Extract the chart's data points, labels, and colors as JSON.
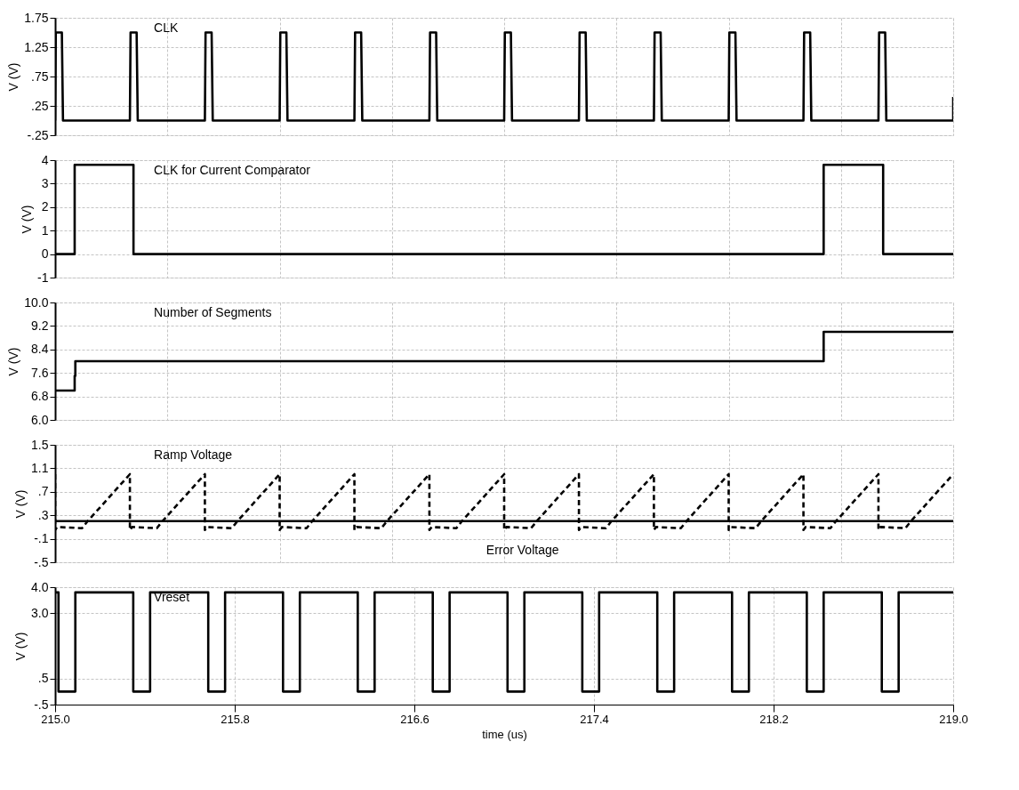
{
  "chart_data": [
    {
      "type": "line",
      "ylabel": "V (V)",
      "xlim": [
        215.0,
        219.0
      ],
      "ylim": [
        -0.25,
        1.75
      ],
      "grid": true,
      "tick_labels": "y",
      "yticks": [
        {
          "value": -0.25,
          "label": "-.25"
        },
        {
          "value": 0.25,
          "label": ".25"
        },
        {
          "value": 0.75,
          "label": ".75"
        },
        {
          "value": 1.25,
          "label": "1.25"
        },
        {
          "value": 1.75,
          "label": "1.75"
        }
      ],
      "series": [
        {
          "name": "CLK",
          "color": "#000000",
          "line_style": "solid",
          "x": [
            215.0,
            215.003,
            215.03,
            215.035,
            215.333,
            215.336,
            215.363,
            215.368,
            215.667,
            215.67,
            215.697,
            215.702,
            216.0,
            216.003,
            216.03,
            216.035,
            216.333,
            216.336,
            216.363,
            216.368,
            216.667,
            216.67,
            216.697,
            216.702,
            217.0,
            217.003,
            217.03,
            217.035,
            217.333,
            217.336,
            217.363,
            217.368,
            217.667,
            217.67,
            217.697,
            217.702,
            218.0,
            218.003,
            218.03,
            218.035,
            218.333,
            218.336,
            218.363,
            218.368,
            218.667,
            218.67,
            218.697,
            218.702,
            219.0,
            219.0
          ],
          "values": [
            0,
            1.5,
            1.5,
            0,
            0,
            1.5,
            1.5,
            0,
            0,
            1.5,
            1.5,
            0,
            0,
            1.5,
            1.5,
            0,
            0,
            1.5,
            1.5,
            0,
            0,
            1.5,
            1.5,
            0,
            0,
            1.5,
            1.5,
            0,
            0,
            1.5,
            1.5,
            0,
            0,
            1.5,
            1.5,
            0,
            0,
            1.5,
            1.5,
            0,
            0,
            1.5,
            1.5,
            0,
            0,
            1.5,
            1.5,
            0,
            0,
            0.4
          ]
        }
      ]
    },
    {
      "type": "line",
      "ylabel": "V (V)",
      "xlim": [
        215.0,
        219.0
      ],
      "ylim": [
        -1,
        4
      ],
      "grid": true,
      "tick_labels": "y",
      "yticks": [
        -1,
        0,
        1,
        2,
        3,
        4
      ],
      "series": [
        {
          "name": "CLK for Current Comparator",
          "color": "#000000",
          "line_style": "solid",
          "x": [
            215.0,
            215.087,
            215.087,
            215.349,
            215.349,
            218.423,
            218.423,
            218.688,
            218.688,
            219.0
          ],
          "values": [
            0,
            0,
            3.8,
            3.8,
            0,
            0,
            3.8,
            3.8,
            0,
            0
          ]
        }
      ]
    },
    {
      "type": "line",
      "ylabel": "V (V)",
      "xlim": [
        215.0,
        219.0
      ],
      "ylim": [
        6.0,
        10.0
      ],
      "grid": true,
      "tick_labels": "y",
      "yticks": [
        {
          "value": 6.0,
          "label": "6.0"
        },
        {
          "value": 6.8,
          "label": "6.8"
        },
        {
          "value": 7.6,
          "label": "7.6"
        },
        {
          "value": 8.4,
          "label": "8.4"
        },
        {
          "value": 9.2,
          "label": "9.2"
        },
        {
          "value": 10.0,
          "label": "10.0"
        }
      ],
      "series": [
        {
          "name": "Number of Segments",
          "color": "#000000",
          "line_style": "solid",
          "x": [
            215.0,
            215.087,
            215.087,
            215.09,
            215.09,
            218.423,
            218.423,
            219.0
          ],
          "values": [
            7,
            7,
            7.5,
            7.5,
            8,
            8,
            9,
            9
          ]
        }
      ]
    },
    {
      "type": "line",
      "ylabel": "V (V)",
      "xlim": [
        215.0,
        219.0
      ],
      "ylim": [
        -0.5,
        1.5
      ],
      "grid": true,
      "tick_labels": "y",
      "yticks": [
        {
          "value": -0.5,
          "label": "-.5"
        },
        {
          "value": -0.1,
          "label": "-.1"
        },
        {
          "value": 0.3,
          "label": ".3"
        },
        {
          "value": 0.7,
          "label": ".7"
        },
        {
          "value": 1.1,
          "label": "1.1"
        },
        {
          "value": 1.5,
          "label": "1.5"
        }
      ],
      "series": [
        {
          "name": "Ramp Voltage",
          "color": "#000000",
          "line_style": "dashed",
          "x": [
            215.0,
            215.0,
            215.01,
            215.12,
            215.145,
            215.333,
            215.333,
            215.343,
            215.453,
            215.478,
            215.667,
            215.667,
            215.677,
            215.787,
            215.812,
            216.0,
            216.0,
            216.01,
            216.12,
            216.145,
            216.333,
            216.333,
            216.343,
            216.453,
            216.478,
            216.667,
            216.667,
            216.677,
            216.787,
            216.812,
            217.0,
            217.0,
            217.01,
            217.12,
            217.145,
            217.333,
            217.333,
            217.343,
            217.453,
            217.478,
            217.667,
            217.667,
            217.677,
            217.787,
            217.812,
            218.0,
            218.0,
            218.01,
            218.12,
            218.145,
            218.333,
            218.333,
            218.343,
            218.453,
            218.478,
            218.667,
            218.667,
            218.677,
            218.787,
            218.812,
            219.0
          ],
          "values": [
            1.0,
            0.05,
            0.1,
            0.08,
            0.2,
            1.0,
            0.05,
            0.1,
            0.08,
            0.2,
            1.0,
            0.05,
            0.1,
            0.08,
            0.2,
            1.0,
            0.05,
            0.1,
            0.08,
            0.2,
            1.0,
            0.05,
            0.1,
            0.08,
            0.2,
            1.0,
            0.05,
            0.1,
            0.08,
            0.2,
            1.0,
            0.05,
            0.1,
            0.08,
            0.2,
            1.0,
            0.05,
            0.1,
            0.08,
            0.2,
            1.0,
            0.05,
            0.1,
            0.08,
            0.2,
            1.0,
            0.05,
            0.1,
            0.08,
            0.2,
            1.0,
            0.05,
            0.1,
            0.08,
            0.2,
            1.0,
            0.05,
            0.1,
            0.08,
            0.2,
            1.0
          ]
        },
        {
          "name": "Error Voltage",
          "color": "#000000",
          "line_style": "solid",
          "x": [
            215.0,
            219.0
          ],
          "values": [
            0.2,
            0.2
          ]
        }
      ]
    },
    {
      "type": "line",
      "ylabel": "V (V)",
      "xlabel": "time (us)",
      "xlim": [
        215.0,
        219.0
      ],
      "ylim": [
        -0.5,
        4.0
      ],
      "grid": true,
      "xticks": [
        {
          "value": 215.0,
          "label": "215.0"
        },
        {
          "value": 215.8,
          "label": "215.8"
        },
        {
          "value": 216.6,
          "label": "216.6"
        },
        {
          "value": 217.4,
          "label": "217.4"
        },
        {
          "value": 218.2,
          "label": "218.2"
        },
        {
          "value": 219.0,
          "label": "219.0"
        }
      ],
      "yticks": [
        {
          "value": -0.5,
          "label": "-.5"
        },
        {
          "value": 0.5,
          "label": ".5"
        },
        {
          "value": 3.0,
          "label": "3.0"
        },
        {
          "value": 4.0,
          "label": "4.0"
        }
      ],
      "series": [
        {
          "name": "Vreset",
          "color": "#000000",
          "line_style": "solid",
          "x": [
            215.0,
            215.015,
            215.015,
            215.09,
            215.09,
            215.348,
            215.348,
            215.423,
            215.423,
            215.682,
            215.682,
            215.757,
            215.757,
            216.015,
            216.015,
            216.09,
            216.09,
            216.348,
            216.348,
            216.423,
            216.423,
            216.682,
            216.682,
            216.757,
            216.757,
            217.015,
            217.015,
            217.09,
            217.09,
            217.348,
            217.348,
            217.423,
            217.423,
            217.682,
            217.682,
            217.757,
            217.757,
            218.015,
            218.015,
            218.09,
            218.09,
            218.348,
            218.348,
            218.423,
            218.423,
            218.682,
            218.682,
            218.757,
            218.757,
            219.0
          ],
          "values": [
            3.8,
            3.8,
            0,
            0,
            3.8,
            3.8,
            0,
            0,
            3.8,
            3.8,
            0,
            0,
            3.8,
            3.8,
            0,
            0,
            3.8,
            3.8,
            0,
            0,
            3.8,
            3.8,
            0,
            0,
            3.8,
            3.8,
            0,
            0,
            3.8,
            3.8,
            0,
            0,
            3.8,
            3.8,
            0,
            0,
            3.8,
            3.8,
            0,
            0,
            3.8,
            3.8,
            0,
            0,
            3.8,
            3.8,
            0,
            0,
            3.8,
            3.8
          ]
        }
      ]
    }
  ]
}
